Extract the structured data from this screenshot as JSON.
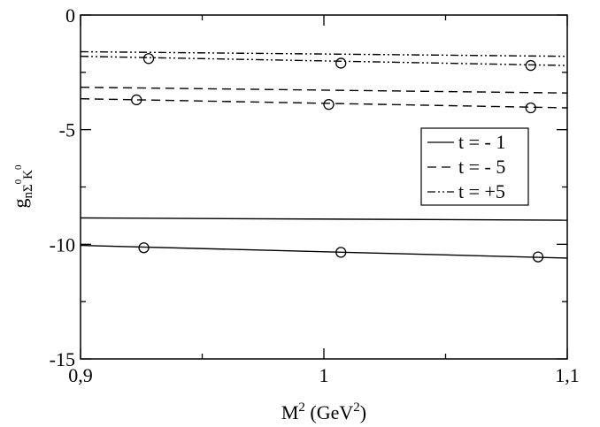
{
  "chart_data": {
    "type": "line",
    "xlabel": {
      "base": "M",
      "sup1": "2",
      "mid": " (GeV",
      "sup2": "2",
      "end": ")"
    },
    "ylabel": {
      "base": "g",
      "sub1": "nΣ",
      "sup1": "0",
      "sub2": "K",
      "sup2": "0"
    },
    "xlim": [
      0.9,
      1.1
    ],
    "ylim": [
      -15,
      0
    ],
    "x_ticks": [
      {
        "value": 0.9,
        "label": "0,9"
      },
      {
        "value": 1.0,
        "label": "1"
      },
      {
        "value": 1.1,
        "label": "1,1"
      }
    ],
    "y_ticks": [
      {
        "value": 0,
        "label": "0"
      },
      {
        "value": -5,
        "label": "-5"
      },
      {
        "value": -10,
        "label": "-10"
      },
      {
        "value": -15,
        "label": "-15"
      }
    ],
    "legend_position": "right",
    "series": [
      {
        "name": "t = - 1",
        "style": "solid",
        "x": [
          0.9,
          1.1
        ],
        "y": [
          -8.85,
          -8.95
        ]
      },
      {
        "name": "",
        "style": "solid",
        "x": [
          0.9,
          1.1
        ],
        "y": [
          -10.05,
          -10.6
        ]
      },
      {
        "name": "t = - 5",
        "style": "dashed",
        "x": [
          0.9,
          1.1
        ],
        "y": [
          -3.15,
          -3.4
        ]
      },
      {
        "name": "",
        "style": "dashed",
        "x": [
          0.9,
          1.1
        ],
        "y": [
          -3.65,
          -4.05
        ]
      },
      {
        "name": "t = +5",
        "style": "dashdotdot",
        "x": [
          0.9,
          1.1
        ],
        "y": [
          -1.6,
          -1.8
        ]
      },
      {
        "name": "",
        "style": "dashdotdot",
        "x": [
          0.9,
          1.1
        ],
        "y": [
          -1.8,
          -2.2
        ]
      }
    ],
    "markers": [
      {
        "x": 0.928,
        "y": -1.9
      },
      {
        "x": 1.007,
        "y": -2.1
      },
      {
        "x": 1.085,
        "y": -2.2
      },
      {
        "x": 0.923,
        "y": -3.7
      },
      {
        "x": 1.002,
        "y": -3.9
      },
      {
        "x": 1.085,
        "y": -4.05
      },
      {
        "x": 0.926,
        "y": -10.15
      },
      {
        "x": 1.007,
        "y": -10.35
      },
      {
        "x": 1.088,
        "y": -10.55
      }
    ]
  }
}
